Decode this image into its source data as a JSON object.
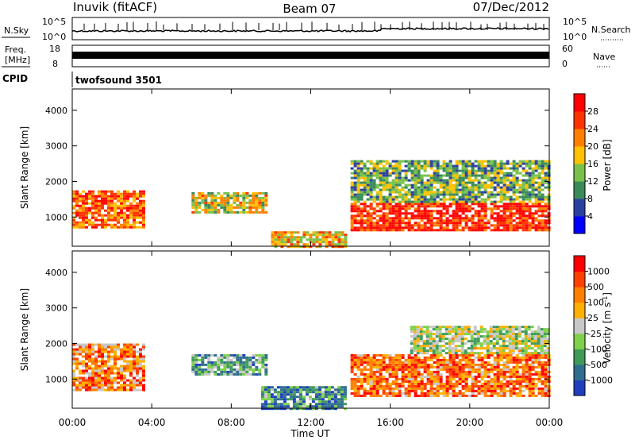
{
  "header": {
    "station": "Inuvik (fitACF)",
    "beam": "Beam 07",
    "date": "07/Dec/2012"
  },
  "status_panels": {
    "nsky": {
      "label": "N.Sky",
      "ticks": [
        "10^5",
        "10^0"
      ]
    },
    "nsearch": {
      "label": "N.Search",
      "ticks": [
        "10^5",
        "10^0"
      ]
    },
    "freq": {
      "label_line1": "Freq.",
      "label_line2": "[MHz]",
      "ticks": [
        "18",
        "8"
      ]
    },
    "nave": {
      "label": "Nave",
      "ticks": [
        "60",
        "0"
      ]
    },
    "cpid": {
      "label": "CPID",
      "value": "twofsound 3501"
    }
  },
  "chart_data": [
    {
      "type": "heatmap",
      "panel": "power",
      "ylabel": "Slant Range [km]",
      "xlabel": "",
      "yticks": [
        1000,
        2000,
        3000,
        4000
      ],
      "ylim": [
        180,
        4600
      ],
      "x_range_ut": [
        "00:00",
        "24:00"
      ],
      "colorbar": {
        "label": "Power [dB]",
        "ticks": [
          4,
          8,
          12,
          16,
          20,
          24,
          28
        ],
        "range": [
          0,
          32
        ],
        "colors": [
          "#0000ff",
          "#2d3fa0",
          "#3a8a5a",
          "#79c14b",
          "#ffc000",
          "#ff8000",
          "#ff3300",
          "#ff0000"
        ]
      },
      "features": [
        {
          "t0": 0.0,
          "t1": 3.6,
          "r0": 700,
          "r1": 1750,
          "level": 0.75
        },
        {
          "t0": 6.0,
          "t1": 9.8,
          "r0": 1100,
          "r1": 1700,
          "level": 0.55
        },
        {
          "t0": 10.0,
          "t1": 13.8,
          "r0": 180,
          "r1": 600,
          "level": 0.6
        },
        {
          "t0": 14.0,
          "t1": 24.0,
          "r0": 600,
          "r1": 1400,
          "level": 0.85
        },
        {
          "t0": 14.0,
          "t1": 24.0,
          "r0": 1400,
          "r1": 2600,
          "level": 0.4
        }
      ]
    },
    {
      "type": "heatmap",
      "panel": "velocity",
      "ylabel": "Slant Range [km]",
      "xlabel": "Time UT",
      "yticks": [
        1000,
        2000,
        3000,
        4000
      ],
      "ylim": [
        180,
        4600
      ],
      "xticks": [
        "00:00",
        "04:00",
        "08:00",
        "12:00",
        "16:00",
        "20:00",
        "00:00"
      ],
      "colorbar": {
        "label": "Velocity [m s-1]",
        "ticks": [
          "1000",
          "500",
          "100",
          "25",
          "-25",
          "-100",
          "-500",
          "-1000"
        ],
        "colors": [
          "#1f3fbf",
          "#2f6e8f",
          "#3f9a5a",
          "#7fd04a",
          "#c8c8c8",
          "#ffb000",
          "#ff7f00",
          "#ff4000",
          "#ff0000"
        ]
      },
      "features": [
        {
          "t0": 0.0,
          "t1": 3.6,
          "r0": 700,
          "r1": 2000,
          "level": 0.7
        },
        {
          "t0": 6.0,
          "t1": 9.8,
          "r0": 1100,
          "r1": 1700,
          "level": 0.3
        },
        {
          "t0": 9.5,
          "t1": 13.8,
          "r0": 180,
          "r1": 800,
          "level": 0.25
        },
        {
          "t0": 14.0,
          "t1": 24.0,
          "r0": 500,
          "r1": 1700,
          "level": 0.75
        },
        {
          "t0": 17.0,
          "t1": 24.0,
          "r0": 1700,
          "r1": 2500,
          "level": 0.45
        }
      ]
    }
  ]
}
